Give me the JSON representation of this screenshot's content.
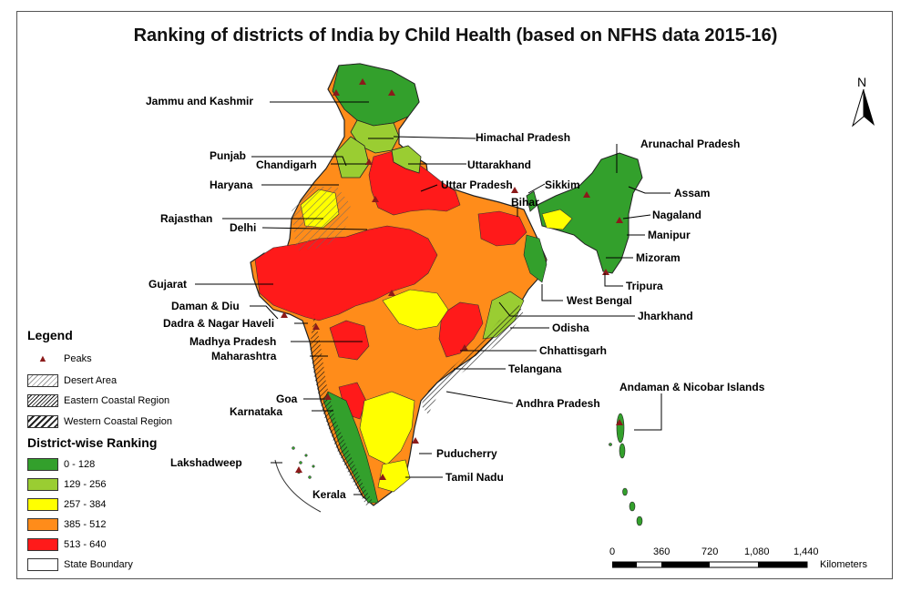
{
  "title": "Ranking of districts of India by Child Health (based on NFHS data 2015-16)",
  "north_label": "N",
  "legend": {
    "heading": "Legend",
    "peaks_label": "Peaks",
    "hatch_items": [
      "Desert Area",
      "Eastern Coastal Region",
      "Western Coastal Region"
    ],
    "ranking_heading": "District-wise Ranking",
    "ranking": [
      {
        "label": "0 - 128",
        "color": "#33a02c"
      },
      {
        "label": "129 - 256",
        "color": "#9acd32"
      },
      {
        "label": "257 - 384",
        "color": "#ffff00"
      },
      {
        "label": "385 - 512",
        "color": "#ff8c1a"
      },
      {
        "label": "513 - 640",
        "color": "#ff1a1a"
      }
    ],
    "boundary_label": "State Boundary"
  },
  "scale_bar": {
    "ticks": [
      "0",
      "360",
      "720",
      "1,080",
      "1,440"
    ],
    "unit": "Kilometers"
  },
  "states": {
    "jammu_kashmir": "Jammu and Kashmir",
    "himachal": "Himachal Pradesh",
    "punjab": "Punjab",
    "chandigarh": "Chandigarh",
    "uttarakhand": "Uttarakhand",
    "haryana": "Haryana",
    "uttar_pradesh": "Uttar Pradesh",
    "sikkim": "Sikkim",
    "bihar": "Bihar",
    "arunachal": "Arunachal Pradesh",
    "assam": "Assam",
    "nagaland": "Nagaland",
    "manipur": "Manipur",
    "mizoram": "Mizoram",
    "tripura": "Tripura",
    "rajasthan": "Rajasthan",
    "delhi": "Delhi",
    "gujarat": "Gujarat",
    "west_bengal": "West Bengal",
    "jharkhand": "Jharkhand",
    "daman_diu": "Daman & Diu",
    "dadra": "Dadra & Nagar Haveli",
    "odisha": "Odisha",
    "madhya_pradesh": "Madhya Pradesh",
    "chhattisgarh": "Chhattisgarh",
    "maharashtra": "Maharashtra",
    "telangana": "Telangana",
    "goa": "Goa",
    "karnataka": "Karnataka",
    "andhra": "Andhra Pradesh",
    "andaman": "Andaman & Nicobar Islands",
    "lakshadweep": "Lakshadweep",
    "puducherry": "Puducherry",
    "tamil_nadu": "Tamil Nadu",
    "kerala": "Kerala"
  }
}
